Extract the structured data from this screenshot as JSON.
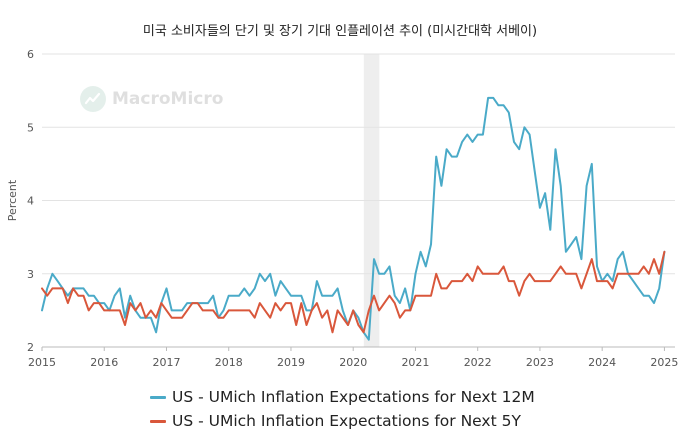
{
  "title": "미국 소비자들의 단기 및 장기 기대 인플레이션 추이 (미시간대학 서베이)",
  "watermark": "MacroMicro",
  "chart_data": {
    "type": "line",
    "title": "미국 소비자들의 단기 및 장기 기대 인플레이션 추이 (미시간대학 서베이)",
    "xlabel": "",
    "ylabel": "Percent",
    "xlim": [
      2015.0,
      2025.17
    ],
    "ylim": [
      2,
      6
    ],
    "yticks": [
      2,
      3,
      4,
      5,
      6
    ],
    "xticks": [
      2015,
      2016,
      2017,
      2018,
      2019,
      2020,
      2021,
      2022,
      2023,
      2024,
      2025
    ],
    "grid": "horizontal",
    "legend_position": "bottom",
    "shaded_period": [
      2020.17,
      2020.42
    ],
    "series": [
      {
        "name": "US - UMich Inflation Expectations for Next 12M",
        "color": "#4aaac8",
        "start": "2015-01",
        "values": [
          2.5,
          2.8,
          3.0,
          2.9,
          2.8,
          2.7,
          2.8,
          2.8,
          2.8,
          2.7,
          2.7,
          2.6,
          2.6,
          2.5,
          2.7,
          2.8,
          2.4,
          2.7,
          2.5,
          2.4,
          2.4,
          2.4,
          2.2,
          2.6,
          2.8,
          2.5,
          2.5,
          2.5,
          2.6,
          2.6,
          2.6,
          2.6,
          2.6,
          2.7,
          2.4,
          2.5,
          2.7,
          2.7,
          2.7,
          2.8,
          2.7,
          2.8,
          3.0,
          2.9,
          3.0,
          2.7,
          2.9,
          2.8,
          2.7,
          2.7,
          2.7,
          2.5,
          2.5,
          2.9,
          2.7,
          2.7,
          2.7,
          2.8,
          2.5,
          2.3,
          2.5,
          2.4,
          2.2,
          2.1,
          3.2,
          3.0,
          3.0,
          3.1,
          2.7,
          2.6,
          2.8,
          2.5,
          3.0,
          3.3,
          3.1,
          3.4,
          4.6,
          4.2,
          4.7,
          4.6,
          4.6,
          4.8,
          4.9,
          4.8,
          4.9,
          4.9,
          5.4,
          5.4,
          5.3,
          5.3,
          5.2,
          4.8,
          4.7,
          5.0,
          4.9,
          4.4,
          3.9,
          4.1,
          3.6,
          4.7,
          4.2,
          3.3,
          3.4,
          3.5,
          3.2,
          4.2,
          4.5,
          3.1,
          2.9,
          3.0,
          2.9,
          3.2,
          3.3,
          3.0,
          2.9,
          2.8,
          2.7,
          2.7,
          2.6,
          2.8,
          3.3
        ]
      },
      {
        "name": "US - UMich Inflation Expectations for Next 5Y",
        "color": "#d9573b",
        "start": "2015-01",
        "values": [
          2.8,
          2.7,
          2.8,
          2.8,
          2.8,
          2.6,
          2.8,
          2.7,
          2.7,
          2.5,
          2.6,
          2.6,
          2.5,
          2.5,
          2.5,
          2.5,
          2.3,
          2.6,
          2.5,
          2.6,
          2.4,
          2.5,
          2.4,
          2.6,
          2.5,
          2.4,
          2.4,
          2.4,
          2.5,
          2.6,
          2.6,
          2.5,
          2.5,
          2.5,
          2.4,
          2.4,
          2.5,
          2.5,
          2.5,
          2.5,
          2.5,
          2.4,
          2.6,
          2.5,
          2.4,
          2.6,
          2.5,
          2.6,
          2.6,
          2.3,
          2.6,
          2.3,
          2.5,
          2.6,
          2.4,
          2.5,
          2.2,
          2.5,
          2.4,
          2.3,
          2.5,
          2.3,
          2.2,
          2.5,
          2.7,
          2.5,
          2.6,
          2.7,
          2.6,
          2.4,
          2.5,
          2.5,
          2.7,
          2.7,
          2.7,
          2.7,
          3.0,
          2.8,
          2.8,
          2.9,
          2.9,
          2.9,
          3.0,
          2.9,
          3.1,
          3.0,
          3.0,
          3.0,
          3.0,
          3.1,
          2.9,
          2.9,
          2.7,
          2.9,
          3.0,
          2.9,
          2.9,
          2.9,
          2.9,
          3.0,
          3.1,
          3.0,
          3.0,
          3.0,
          2.8,
          3.0,
          3.2,
          2.9,
          2.9,
          2.9,
          2.8,
          3.0,
          3.0,
          3.0,
          3.0,
          3.0,
          3.1,
          3.0,
          3.2,
          3.0,
          3.3
        ]
      }
    ]
  }
}
